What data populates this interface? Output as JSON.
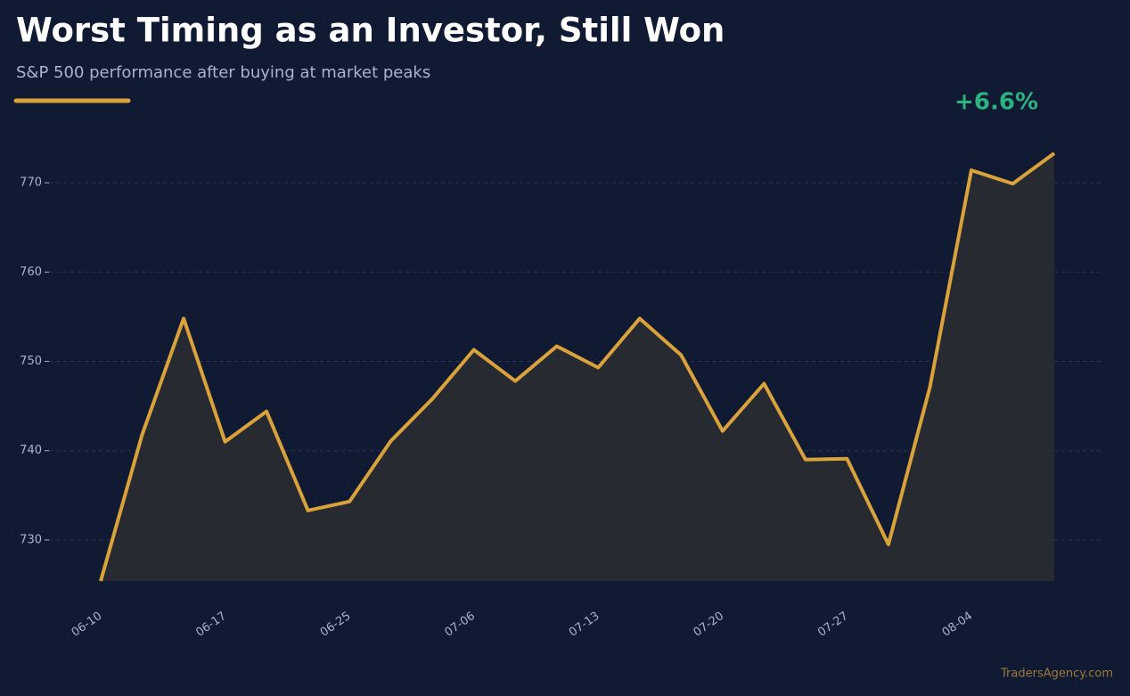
{
  "chart_data": {
    "type": "area",
    "title": "Worst Timing as an Investor, Still Won",
    "subtitle": "S&P 500 performance after buying at market peaks",
    "annotation": "+6.6%",
    "watermark": "TradersAgency.com",
    "categories": [
      "06-10",
      null,
      null,
      "06-17",
      null,
      null,
      "06-25",
      null,
      null,
      "07-06",
      null,
      null,
      "07-13",
      null,
      null,
      "07-20",
      null,
      null,
      "07-27",
      null,
      null,
      "08-04",
      null,
      null
    ],
    "series": [
      {
        "color": "#d9a23a",
        "values": [
          725.4,
          741.8,
          754.8,
          741.0,
          744.4,
          733.3,
          734.3,
          741.1,
          745.8,
          751.3,
          747.8,
          751.7,
          749.3,
          754.8,
          750.7,
          742.2,
          747.5,
          739.0,
          739.1,
          729.5,
          747.1,
          771.4,
          769.9,
          773.3
        ]
      }
    ],
    "ylim": [
      725.4,
      775
    ],
    "yticks": [
      730,
      740,
      750,
      760,
      770
    ],
    "grid": true
  }
}
